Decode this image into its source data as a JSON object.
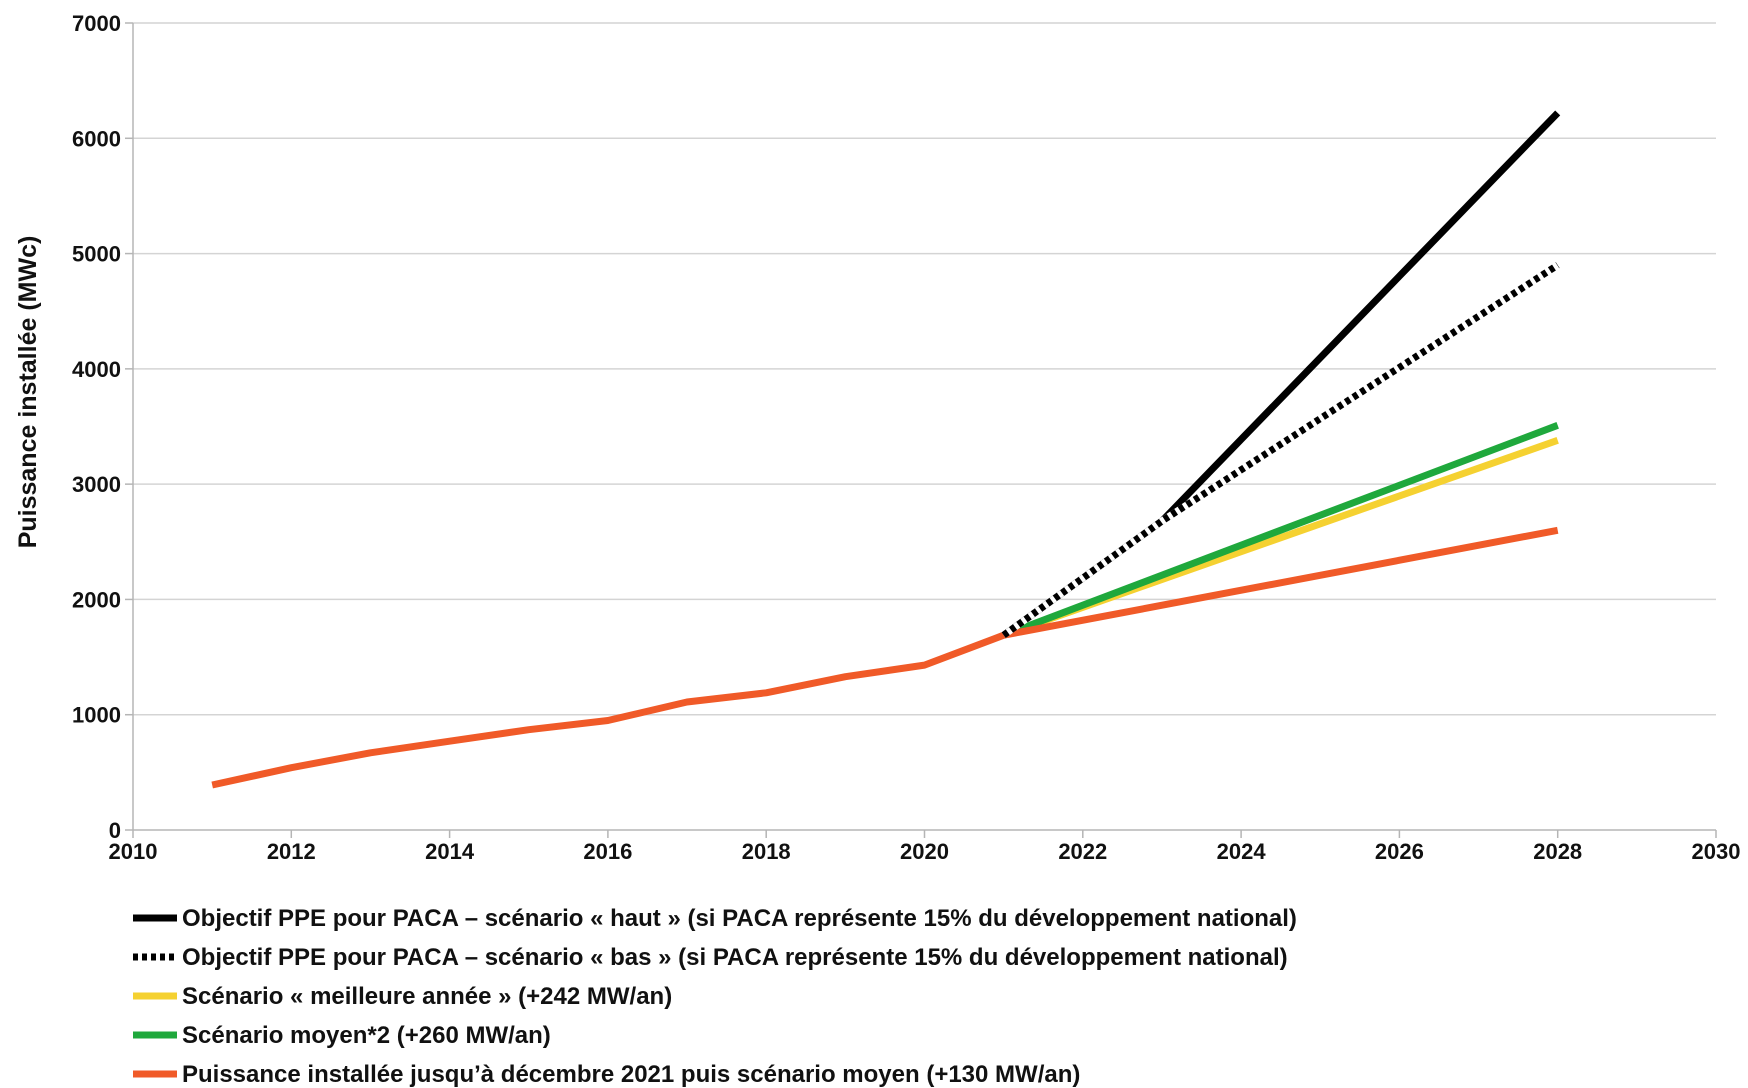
{
  "chart_data": {
    "type": "line",
    "title": "",
    "xlabel": "",
    "ylabel": "Puissance installée (MWc)",
    "xlim": [
      2010,
      2030
    ],
    "ylim": [
      0,
      7000
    ],
    "x_ticks": [
      2010,
      2012,
      2014,
      2016,
      2018,
      2020,
      2022,
      2024,
      2026,
      2028,
      2030
    ],
    "y_ticks": [
      0,
      1000,
      2000,
      3000,
      4000,
      5000,
      6000,
      7000
    ],
    "grid": "horizontal",
    "legend_position": "bottom",
    "series": [
      {
        "name": "Objectif PPE pour PACA – scénario « haut » (si PACA représente 15% du développement national)",
        "color": "#000000",
        "style": "solid",
        "points": [
          [
            2021,
            1690
          ],
          [
            2023,
            2680
          ],
          [
            2028,
            6220
          ]
        ]
      },
      {
        "name": "Objectif PPE pour PACA – scénario « bas » (si PACA représente 15% du développement national)",
        "color": "#000000",
        "style": "dotted",
        "points": [
          [
            2021,
            1690
          ],
          [
            2023,
            2680
          ],
          [
            2028,
            4900
          ]
        ]
      },
      {
        "name": "Scénario « meilleure année » (+242 MW/an)",
        "color": "#f5d131",
        "style": "solid",
        "points": [
          [
            2021,
            1690
          ],
          [
            2028,
            3380
          ]
        ]
      },
      {
        "name": "Scénario moyen*2 (+260 MW/an)",
        "color": "#1fa83c",
        "style": "solid",
        "points": [
          [
            2021,
            1690
          ],
          [
            2028,
            3510
          ]
        ]
      },
      {
        "name": "Puissance installée jusqu’à décembre 2021 puis scénario moyen (+130 MW/an)",
        "color": "#f05a28",
        "style": "solid",
        "points": [
          [
            2011,
            390
          ],
          [
            2012,
            540
          ],
          [
            2013,
            670
          ],
          [
            2014,
            770
          ],
          [
            2015,
            870
          ],
          [
            2016,
            950
          ],
          [
            2017,
            1110
          ],
          [
            2018,
            1190
          ],
          [
            2019,
            1330
          ],
          [
            2020,
            1430
          ],
          [
            2021,
            1690
          ],
          [
            2028,
            2600
          ]
        ]
      }
    ]
  }
}
